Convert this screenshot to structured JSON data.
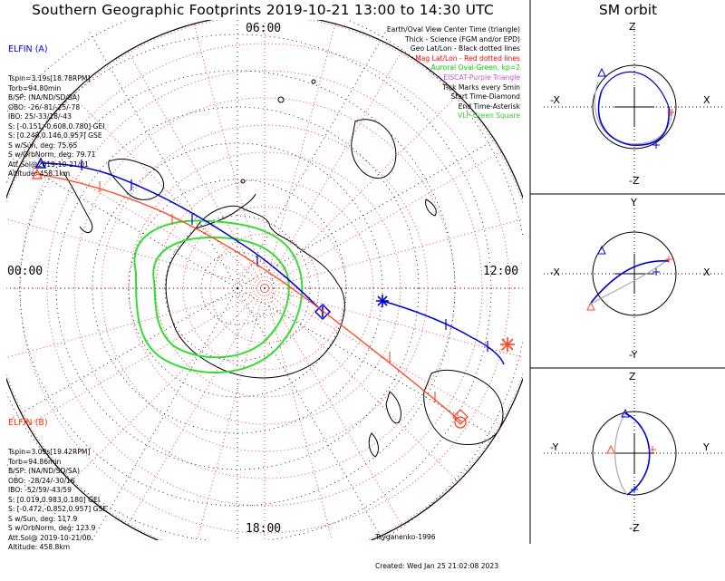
{
  "title": "Southern Geographic Footprints 2019-10-21 13:00 to 14:30 UTC",
  "sm_title": "SM orbit",
  "mlt_labels": {
    "top": "06:00",
    "left": "00:00",
    "right": "12:00",
    "bottom": "18:00"
  },
  "legend": [
    {
      "text": "Earth/Oval View Center Time (triangle)",
      "color": "#000000"
    },
    {
      "text": "Thick - Science (FGM and/or EPD)",
      "color": "#000000"
    },
    {
      "text": "Geo Lat/Lon - Black dotted lines",
      "color": "#000000"
    },
    {
      "text": "Mag Lat/Lon - Red dotted lines",
      "color": "#ff0000"
    },
    {
      "text": "Auroral Oval-Green, kp=2",
      "color": "#00cc00"
    },
    {
      "text": "EISCAT-Purple Triangle",
      "color": "#cc55cc"
    },
    {
      "text": "Tick Marks every 5min",
      "color": "#000000"
    },
    {
      "text": "Start Time-Diamond",
      "color": "#000000"
    },
    {
      "text": "End Time-Asterisk",
      "color": "#000000"
    },
    {
      "text": "VLF-Green Square",
      "color": "#33cc33"
    }
  ],
  "elfin_a": {
    "name": "ELFIN (A)",
    "color": "#0000dd",
    "lines": [
      "Tspin=3.19s[18.78RPM]",
      "Torb=94.80min",
      "B/SP: (NA/ND/SD/SA)",
      "OBO: -26/-81/-25/-78",
      "IBO: 25/-33/18/-43",
      "S: [-0.151,-0.608,0.780] GEI",
      "S: [0.248,0.146,0.957] GSE",
      "S w/Sun, deg: 75.65",
      "S w/OrbNorm, deg: 79.71",
      "Att.Sol@2019-10-21/01",
      "Altitude: 458.1km"
    ]
  },
  "elfin_b": {
    "name": "ELFIN (B)",
    "color": "#ff3300",
    "lines": [
      "Tspin=3.09s[19.42RPM]",
      "Torb=94.86min",
      "B/SP: (NA/ND/SD/SA)",
      "OBO: -28/24/-30/16",
      "IBO: -52/59/-43/59",
      "S: [0.019,0.983,0.180] GEI",
      "S: [-0.472,-0.852,0.957] GSE",
      "S w/Sun, deg: 117.9",
      "S w/OrbNorm, deg: 123.9",
      "Att.Sol@ 2019-10-21/00",
      "Altitude: 458.8km"
    ]
  },
  "credit": {
    "author": "Tsyganenko-1996",
    "created": "Created: Wed Jan 25 21:02:08 2023"
  },
  "sm_panels": [
    {
      "top": "Z",
      "bottom": "-Z",
      "left": "-X",
      "right": "X"
    },
    {
      "top": "Y",
      "bottom": "-Y",
      "left": "-X",
      "right": "X"
    },
    {
      "top": "Z",
      "bottom": "-Z",
      "left": "-Y",
      "right": "Y"
    }
  ]
}
